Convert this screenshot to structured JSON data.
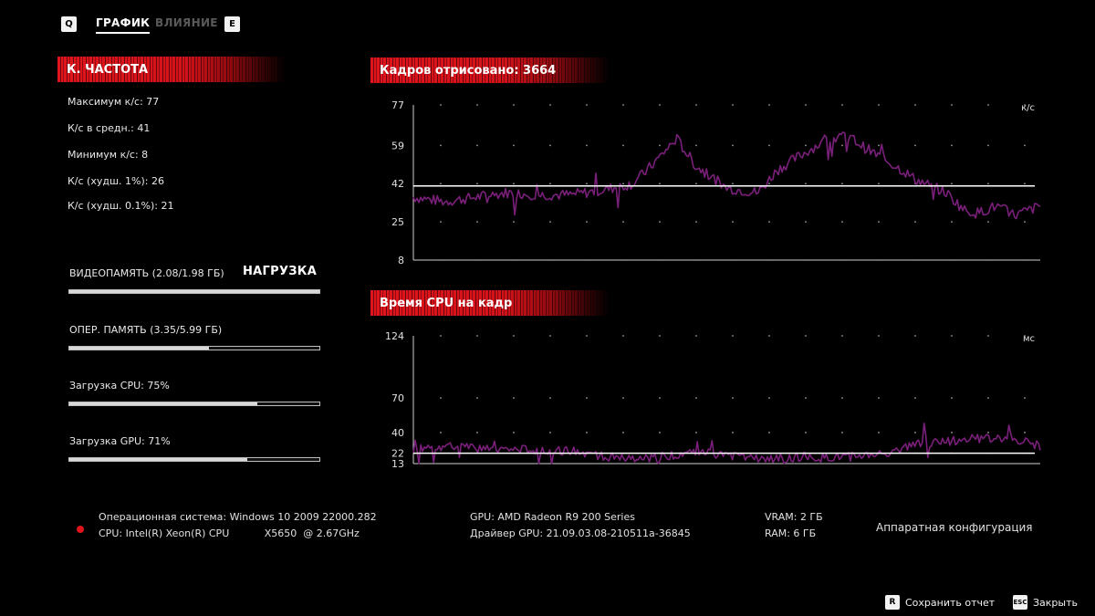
{
  "tabs": {
    "left_key": "Q",
    "right_key": "E",
    "items": [
      {
        "label": "ГРАФИК",
        "active": true
      },
      {
        "label": "ВЛИЯНИЕ",
        "active": false
      }
    ]
  },
  "framerate": {
    "header": "К. ЧАСТОТА",
    "stats": [
      "Максимум к/с: 77",
      "К/с в средн.: 41",
      "Минимум к/с: 8",
      "К/с (худш. 1%): 26",
      "К/с (худш. 0.1%): 21"
    ]
  },
  "load": {
    "title": "НАГРУЗКА",
    "items": [
      {
        "label": "ВИДЕОПАМЯТЬ (2.08/1.98 ГБ)",
        "fraction": 1.0
      },
      {
        "label": "ОПЕР. ПАМЯТЬ (3.35/5.99 ГБ)",
        "fraction": 0.56
      },
      {
        "label": "Загрузка CPU: 75%",
        "fraction": 0.75
      },
      {
        "label": "Загрузка GPU: 71%",
        "fraction": 0.71
      }
    ]
  },
  "fps_chart_header": "Кадров отрисовано: 3664",
  "cpu_chart_header": "Время CPU на кадр",
  "chart_data": [
    {
      "type": "line",
      "title": "Кадров отрисовано: 3664",
      "ylabel": "к/с",
      "yticks": [
        77,
        59,
        42,
        25,
        8
      ],
      "ylim": [
        8,
        77
      ],
      "average": 41,
      "series_color": "#7a1f7a",
      "average_color": "#ffffff",
      "grid": "dots",
      "x": [
        0,
        0.05,
        0.1,
        0.15,
        0.2,
        0.25,
        0.3,
        0.35,
        0.38,
        0.4,
        0.42,
        0.45,
        0.5,
        0.55,
        0.58,
        0.62,
        0.65,
        0.68,
        0.7,
        0.72,
        0.75,
        0.78,
        0.8,
        0.85,
        0.88,
        0.9,
        0.93,
        0.96,
        1.0
      ],
      "values": [
        36,
        34,
        36,
        38,
        37,
        37,
        39,
        42,
        50,
        56,
        62,
        50,
        40,
        38,
        48,
        55,
        60,
        63,
        62,
        58,
        53,
        48,
        44,
        38,
        30,
        29,
        32,
        28,
        32
      ]
    },
    {
      "type": "line",
      "title": "Время CPU на кадр",
      "ylabel": "мс",
      "yticks": [
        124,
        70,
        40,
        22,
        13
      ],
      "ylim": [
        13,
        124
      ],
      "average": 22,
      "series_color": "#7a1f7a",
      "average_color": "#ffffff",
      "grid": "dots",
      "x": [
        0,
        0.05,
        0.1,
        0.15,
        0.2,
        0.25,
        0.3,
        0.35,
        0.4,
        0.45,
        0.5,
        0.55,
        0.6,
        0.65,
        0.7,
        0.75,
        0.8,
        0.85,
        0.9,
        0.95,
        1.0
      ],
      "values": [
        26,
        28,
        26,
        25,
        25,
        24,
        20,
        16,
        19,
        24,
        20,
        17,
        17,
        18,
        19,
        22,
        30,
        32,
        35,
        36,
        28
      ]
    }
  ],
  "footer": {
    "os": "Операционная система: Windows 10 2009 22000.282",
    "cpu": "CPU: Intel(R) Xeon(R) CPU           X5650  @ 2.67GHz",
    "gpu": "GPU: AMD Radeon R9 200 Series",
    "driver": "Драйвер GPU: 21.09.03.08-210511a-36845",
    "vram": "VRAM: 2 ГБ",
    "ram": "RAM: 6 ГБ",
    "hw_config": "Аппаратная конфигурация"
  },
  "buttons": {
    "save": {
      "key": "R",
      "label": "Сохранить отчет"
    },
    "close": {
      "key": "ESC",
      "label": "Закрыть"
    }
  }
}
